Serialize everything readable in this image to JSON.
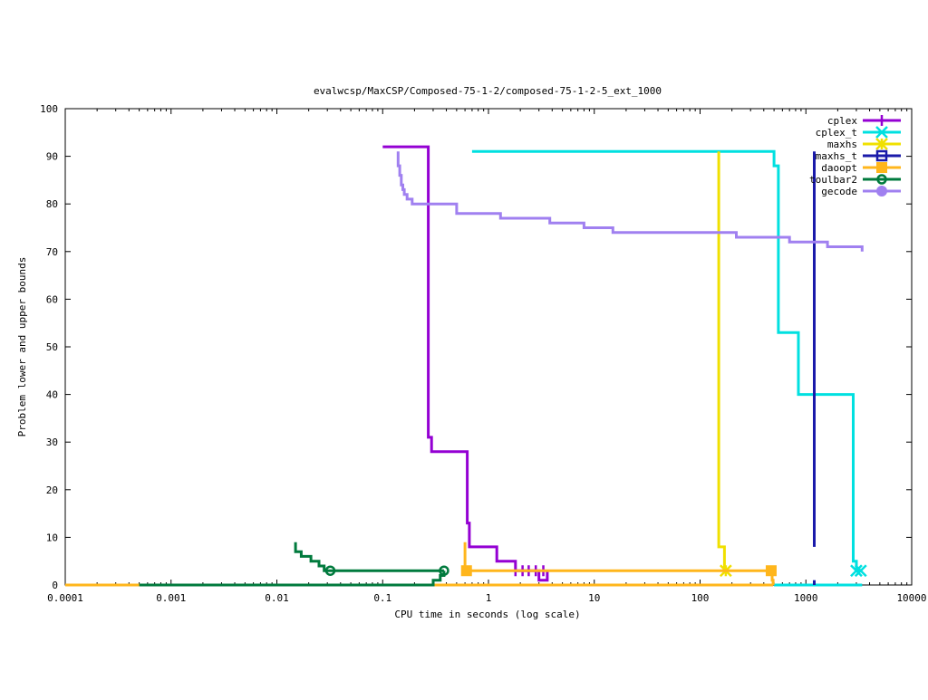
{
  "chart_data": {
    "type": "line",
    "title": "evalwcsp/MaxCSP/Composed-75-1-2/composed-75-1-2-5_ext_1000",
    "xlabel": "CPU time in seconds (log scale)",
    "ylabel": "Problem lower and upper bounds",
    "xscale": "log",
    "xlim": [
      0.0001,
      10000
    ],
    "ylim": [
      0,
      100
    ],
    "xticks": [
      {
        "value": 0.0001,
        "label": "0.0001"
      },
      {
        "value": 0.001,
        "label": "0.001"
      },
      {
        "value": 0.01,
        "label": "0.01"
      },
      {
        "value": 0.1,
        "label": "0.1"
      },
      {
        "value": 1,
        "label": "1"
      },
      {
        "value": 10,
        "label": "10"
      },
      {
        "value": 100,
        "label": "100"
      },
      {
        "value": 1000,
        "label": "1000"
      },
      {
        "value": 10000,
        "label": "10000"
      }
    ],
    "yticks": [
      {
        "value": 0,
        "label": "0"
      },
      {
        "value": 10,
        "label": "10"
      },
      {
        "value": 20,
        "label": "20"
      },
      {
        "value": 30,
        "label": "30"
      },
      {
        "value": 40,
        "label": "40"
      },
      {
        "value": 50,
        "label": "50"
      },
      {
        "value": 60,
        "label": "60"
      },
      {
        "value": 70,
        "label": "70"
      },
      {
        "value": 80,
        "label": "80"
      },
      {
        "value": 90,
        "label": "90"
      },
      {
        "value": 100,
        "label": "100"
      }
    ],
    "grid": false,
    "legend_position": "top-right",
    "series": [
      {
        "name": "cplex",
        "color": "#9400d3",
        "marker": "plus",
        "paths": [
          [
            [
              0.1,
              92
            ],
            [
              0.27,
              92
            ],
            [
              0.27,
              31
            ],
            [
              0.29,
              31
            ],
            [
              0.29,
              28
            ],
            [
              0.63,
              28
            ],
            [
              0.63,
              13
            ],
            [
              0.66,
              13
            ],
            [
              0.66,
              8
            ],
            [
              1.2,
              8
            ],
            [
              1.2,
              5
            ],
            [
              1.8,
              5
            ],
            [
              1.8,
              3
            ],
            [
              3.0,
              3
            ],
            [
              3.0,
              1
            ],
            [
              3.6,
              1
            ],
            [
              3.6,
              3
            ]
          ]
        ],
        "markers": [
          [
            1.8,
            3
          ],
          [
            2.1,
            3
          ],
          [
            2.4,
            3
          ],
          [
            2.8,
            3
          ],
          [
            3.3,
            3
          ]
        ]
      },
      {
        "name": "cplex_t",
        "color": "#00e0e0",
        "marker": "x",
        "paths": [
          [
            [
              0.7,
              91
            ],
            [
              500,
              91
            ],
            [
              500,
              88
            ],
            [
              550,
              88
            ],
            [
              550,
              53
            ],
            [
              850,
              53
            ],
            [
              850,
              40
            ],
            [
              2800,
              40
            ],
            [
              2800,
              5
            ],
            [
              3000,
              5
            ],
            [
              3000,
              3
            ],
            [
              3400,
              3
            ]
          ],
          [
            [
              500,
              0
            ],
            [
              3400,
              0
            ]
          ]
        ],
        "markers": [
          [
            3000,
            3
          ],
          [
            3300,
            3
          ]
        ]
      },
      {
        "name": "maxhs",
        "color": "#f0e000",
        "marker": "star",
        "paths": [
          [
            [
              150,
              91
            ],
            [
              150,
              8
            ],
            [
              170,
              8
            ],
            [
              170,
              3
            ],
            [
              180,
              3
            ]
          ],
          [
            [
              0.0001,
              0
            ],
            [
              170,
              0
            ]
          ]
        ],
        "markers": [
          [
            175,
            3
          ]
        ]
      },
      {
        "name": "maxhs_t",
        "color": "#1a1aaa",
        "marker": "square",
        "paths": [
          [
            [
              1200,
              91
            ],
            [
              1200,
              8
            ]
          ],
          [
            [
              1200,
              0
            ],
            [
              1200,
              1
            ]
          ]
        ],
        "markers": []
      },
      {
        "name": "daoopt",
        "color": "#ffb61c",
        "marker": "filled-square",
        "paths": [
          [
            [
              0.6,
              9
            ],
            [
              0.6,
              3
            ],
            [
              480,
              3
            ],
            [
              480,
              1
            ],
            [
              490,
              1
            ],
            [
              490,
              0
            ]
          ],
          [
            [
              0.0001,
              0
            ],
            [
              490,
              0
            ]
          ]
        ],
        "markers": [
          [
            0.62,
            3
          ],
          [
            470,
            3
          ]
        ]
      },
      {
        "name": "toulbar2",
        "color": "#007a3d",
        "marker": "circle",
        "paths": [
          [
            [
              0.015,
              9
            ],
            [
              0.015,
              7
            ],
            [
              0.017,
              7
            ],
            [
              0.017,
              6
            ],
            [
              0.021,
              6
            ],
            [
              0.021,
              5
            ],
            [
              0.025,
              5
            ],
            [
              0.025,
              4
            ],
            [
              0.028,
              4
            ],
            [
              0.028,
              3
            ],
            [
              0.38,
              3
            ]
          ],
          [
            [
              0.0005,
              0
            ],
            [
              0.3,
              0
            ],
            [
              0.3,
              1
            ],
            [
              0.35,
              1
            ],
            [
              0.35,
              2
            ],
            [
              0.38,
              2
            ],
            [
              0.38,
              3
            ]
          ]
        ],
        "markers": [
          [
            0.032,
            3
          ],
          [
            0.38,
            3
          ]
        ]
      },
      {
        "name": "gecode",
        "color": "#a080f0",
        "marker": "filled-circle",
        "paths": [
          [
            [
              0.14,
              91
            ],
            [
              0.14,
              88
            ],
            [
              0.145,
              88
            ],
            [
              0.145,
              86
            ],
            [
              0.15,
              86
            ],
            [
              0.15,
              84
            ],
            [
              0.155,
              84
            ],
            [
              0.155,
              83
            ],
            [
              0.16,
              83
            ],
            [
              0.16,
              82
            ],
            [
              0.17,
              82
            ],
            [
              0.17,
              81
            ],
            [
              0.19,
              81
            ],
            [
              0.19,
              80
            ],
            [
              0.5,
              80
            ],
            [
              0.5,
              78
            ],
            [
              1.3,
              78
            ],
            [
              1.3,
              77
            ],
            [
              3.8,
              77
            ],
            [
              3.8,
              76
            ],
            [
              8,
              76
            ],
            [
              8,
              75
            ],
            [
              15,
              75
            ],
            [
              15,
              74
            ],
            [
              220,
              74
            ],
            [
              220,
              73
            ],
            [
              700,
              73
            ],
            [
              700,
              72
            ],
            [
              1600,
              72
            ],
            [
              1600,
              71
            ],
            [
              3400,
              71
            ],
            [
              3400,
              70
            ]
          ]
        ],
        "markers": []
      }
    ]
  }
}
